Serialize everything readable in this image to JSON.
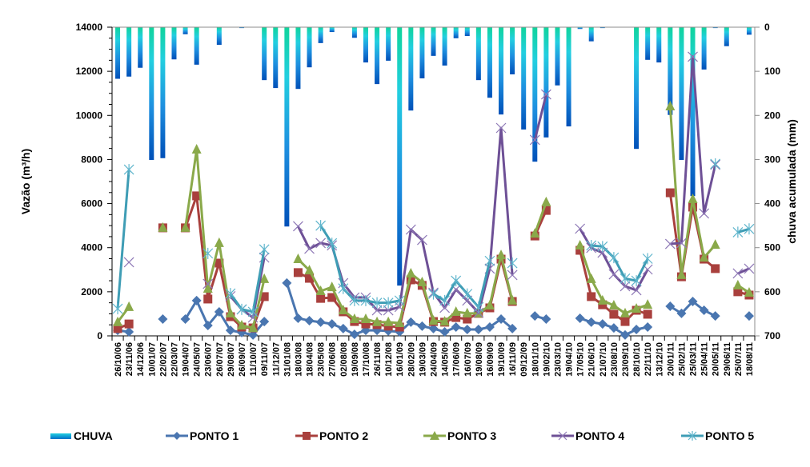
{
  "chart_data": {
    "type": "bar+line",
    "title": "",
    "ylabel": "Vazão (m³/h)",
    "y2label": "chuva acumulada (mm)",
    "ylim": [
      0,
      14000
    ],
    "y2lim": [
      0,
      700
    ],
    "y2_inverted": true,
    "yticks": [
      "0",
      "2000",
      "4000",
      "6000",
      "8000",
      "10000",
      "12000",
      "14000"
    ],
    "y2ticks": [
      "0",
      "100",
      "200",
      "300",
      "400",
      "500",
      "600",
      "700"
    ],
    "grid": false,
    "legend_position": "bottom",
    "categories": [
      "26/10/06",
      "23/11/06",
      "14/12/06",
      "10/01/07",
      "22/02/07",
      "22/03/07",
      "19/04/07",
      "24/05/07",
      "23/06/07",
      "26/07/07",
      "29/08/07",
      "26/09/07",
      "11/10/07",
      "09/11/07",
      "11/12/07",
      "31/01/08",
      "18/03/08",
      "18/04/08",
      "23/05/08",
      "27/06/08",
      "02/08/08",
      "19/09/08",
      "17/10/08",
      "26/11/08",
      "10/12/08",
      "16/01/09",
      "28/02/09",
      "19/03/09",
      "24/04/09",
      "14/05/09",
      "17/06/09",
      "16/07/09",
      "19/08/09",
      "16/09/09",
      "19/10/09",
      "16/11/09",
      "09/12/09",
      "18/01/10",
      "19/02/10",
      "23/03/10",
      "19/04/10",
      "17/05/10",
      "21/06/10",
      "21/07/10",
      "23/08/10",
      "23/09/10",
      "28/10/10",
      "22/11/10",
      "13/12/10",
      "20/01/11",
      "25/02/11",
      "25/03/11",
      "25/04/11",
      "20/05/11",
      "29/06/11",
      "25/07/11",
      "18/08/11"
    ],
    "bar_series": {
      "name": "CHUVA",
      "axis": "right",
      "values": [
        117,
        112,
        92,
        301,
        297,
        73,
        16,
        85,
        0,
        40,
        0,
        2,
        0,
        120,
        138,
        452,
        140,
        91,
        36,
        11,
        0,
        24,
        80,
        129,
        76,
        586,
        189,
        116,
        65,
        87,
        25,
        20,
        120,
        160,
        198,
        107,
        232,
        305,
        250,
        132,
        225,
        4,
        32,
        2,
        0,
        0,
        276,
        74,
        80,
        199,
        301,
        383,
        96,
        2,
        43,
        0,
        17
      ],
      "gradient": [
        "#10d49c",
        "#22cfe0",
        "#1e90e0",
        "#0050b8"
      ]
    },
    "series": [
      {
        "name": "PONTO 1",
        "color": "#4a76b0",
        "marker": "diamond",
        "values": [
          250,
          180,
          null,
          null,
          760,
          null,
          760,
          1600,
          470,
          1090,
          250,
          150,
          40,
          650,
          null,
          2400,
          800,
          690,
          620,
          540,
          330,
          70,
          250,
          250,
          220,
          180,
          620,
          440,
          330,
          180,
          400,
          290,
          290,
          400,
          760,
          330,
          null,
          900,
          760,
          null,
          null,
          800,
          620,
          540,
          360,
          40,
          290,
          400,
          null,
          1340,
          1020,
          1560,
          1160,
          900,
          null,
          null,
          900
        ]
      },
      {
        "name": "PONTO 2",
        "color": "#a9403d",
        "marker": "square",
        "values": [
          330,
          540,
          null,
          null,
          4900,
          null,
          4900,
          6350,
          1670,
          3300,
          870,
          400,
          360,
          1780,
          null,
          null,
          2870,
          2610,
          1700,
          1740,
          1090,
          650,
          540,
          510,
          440,
          400,
          2540,
          2290,
          650,
          620,
          830,
          760,
          1020,
          1270,
          3480,
          1560,
          null,
          4530,
          5690,
          null,
          null,
          3880,
          1780,
          1410,
          980,
          650,
          1160,
          980,
          null,
          6490,
          2680,
          5840,
          3480,
          3050,
          null,
          2000,
          1850
        ]
      },
      {
        "name": "PONTO 3",
        "color": "#8aa94a",
        "marker": "triangle",
        "values": [
          620,
          1310,
          null,
          null,
          4900,
          null,
          4900,
          8450,
          2140,
          4210,
          1020,
          470,
          360,
          2580,
          null,
          null,
          3480,
          2970,
          2030,
          2210,
          1160,
          760,
          760,
          620,
          620,
          580,
          2830,
          2430,
          690,
          650,
          1090,
          1020,
          1020,
          1380,
          3660,
          1600,
          null,
          4640,
          6060,
          null,
          null,
          4100,
          2580,
          1600,
          1380,
          1020,
          1230,
          1410,
          null,
          10410,
          2760,
          6200,
          3550,
          4130,
          null,
          2290,
          1960
        ]
      },
      {
        "name": "PONTO 4",
        "color": "#6e5096",
        "marker": "x",
        "values": [
          null,
          3340,
          null,
          null,
          null,
          null,
          null,
          null,
          2360,
          null,
          1800,
          1200,
          830,
          3550,
          null,
          null,
          4970,
          3950,
          4210,
          4100,
          2390,
          1740,
          1740,
          1160,
          1160,
          1310,
          4820,
          4350,
          1960,
          1270,
          2100,
          1600,
          1050,
          3050,
          9430,
          2760,
          null,
          8890,
          10950,
          null,
          null,
          4860,
          3990,
          3770,
          2790,
          2250,
          2070,
          3010,
          null,
          4170,
          4210,
          12660,
          5550,
          7760,
          null,
          2830,
          3050
        ]
      },
      {
        "name": "PONTO 5",
        "color": "#3f9db5",
        "marker": "star",
        "values": [
          1230,
          7540,
          null,
          null,
          null,
          null,
          null,
          null,
          3740,
          null,
          1920,
          1200,
          1090,
          3920,
          null,
          null,
          null,
          null,
          5000,
          4200,
          2150,
          1600,
          1600,
          1500,
          1500,
          1600,
          null,
          null,
          1900,
          1600,
          2500,
          1900,
          1300,
          3400,
          null,
          3300,
          null,
          null,
          null,
          null,
          null,
          null,
          4100,
          4050,
          3550,
          2600,
          2500,
          3500,
          null,
          null,
          null,
          null,
          null,
          7800,
          null,
          4700,
          4850
        ]
      }
    ]
  },
  "legend": {
    "items": [
      {
        "label": "CHUVA",
        "kind": "bar"
      },
      {
        "label": "PONTO 1",
        "kind": "line",
        "color": "#4a76b0",
        "marker": "diamond"
      },
      {
        "label": "PONTO 2",
        "kind": "line",
        "color": "#a9403d",
        "marker": "square"
      },
      {
        "label": "PONTO 3",
        "kind": "line",
        "color": "#8aa94a",
        "marker": "triangle"
      },
      {
        "label": "PONTO 4",
        "kind": "line",
        "color": "#6e5096",
        "marker": "x"
      },
      {
        "label": "PONTO 5",
        "kind": "line",
        "color": "#3f9db5",
        "marker": "star"
      }
    ]
  }
}
